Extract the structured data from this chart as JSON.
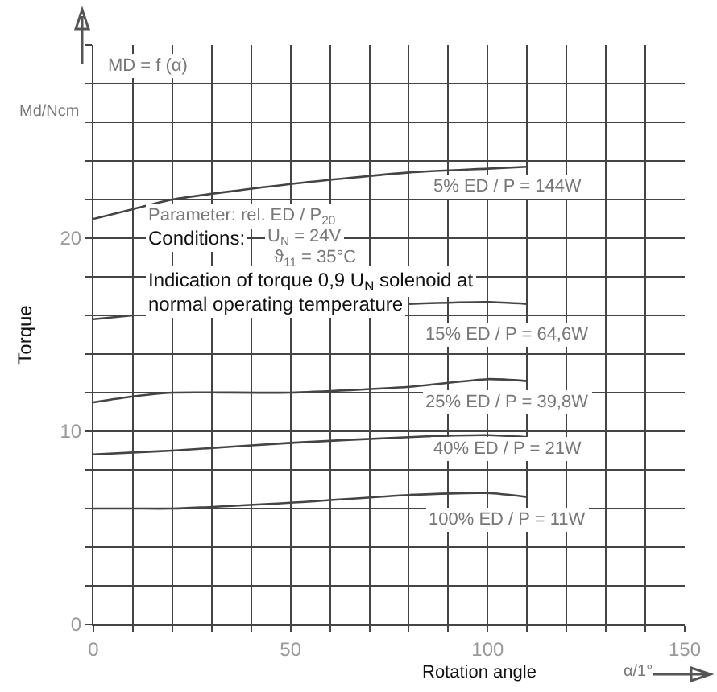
{
  "chart_data": {
    "type": "line",
    "title": "MD = f (α)",
    "xlabel": "Rotation angle",
    "ylabel": "Torque",
    "x": [
      0,
      10,
      20,
      50,
      80,
      100,
      110
    ],
    "series": [
      {
        "name": "5% ED / P = 144W",
        "color": "#444444",
        "values": [
          21.0,
          21.5,
          22.0,
          22.8,
          23.4,
          23.6,
          23.7
        ]
      },
      {
        "name": "15% ED / P = 64,6W",
        "color": "#444444",
        "values": [
          15.8,
          16.0,
          null,
          null,
          16.6,
          16.7,
          16.6
        ]
      },
      {
        "name": "25% ED / P = 39,8W",
        "color": "#444444",
        "values": [
          11.5,
          11.8,
          12.0,
          12.0,
          12.3,
          12.7,
          12.6
        ]
      },
      {
        "name": "40% ED / P = 21W",
        "color": "#444444",
        "values": [
          8.8,
          8.9,
          9.0,
          9.4,
          9.7,
          9.8,
          9.7
        ]
      },
      {
        "name": "100% ED / P = 11W",
        "color": "#444444",
        "values": [
          6.0,
          6.0,
          6.0,
          6.3,
          6.7,
          6.8,
          6.6
        ]
      }
    ],
    "xlim": [
      0,
      150
    ],
    "ylim": [
      0,
      30
    ],
    "xticks": [
      0,
      {
        "value": 10,
        "label": null
      },
      {
        "value": 20,
        "label": null
      },
      {
        "value": 30,
        "label": null
      },
      {
        "value": 40,
        "label": null
      },
      50,
      {
        "value": 60,
        "label": null
      },
      {
        "value": 70,
        "label": null
      },
      {
        "value": 80,
        "label": null
      },
      {
        "value": 90,
        "label": null
      },
      100,
      {
        "value": 110,
        "label": null
      },
      {
        "value": 120,
        "label": null
      },
      {
        "value": 130,
        "label": null
      },
      {
        "value": 140,
        "label": null
      },
      150
    ],
    "yticks": [
      0,
      {
        "value": 2,
        "label": null
      },
      {
        "value": 4,
        "label": null
      },
      {
        "value": 6,
        "label": null
      },
      {
        "value": 8,
        "label": null
      },
      10,
      {
        "value": 12,
        "label": null
      },
      {
        "value": 14,
        "label": null
      },
      {
        "value": 16,
        "label": null
      },
      {
        "value": 18,
        "label": null
      },
      20,
      {
        "value": 22,
        "label": null
      },
      {
        "value": 24,
        "label": null
      },
      {
        "value": 26,
        "label": null
      },
      {
        "value": 28,
        "label": null
      },
      {
        "value": 30,
        "label": null
      }
    ],
    "grid": true,
    "legend": false,
    "marker": "none",
    "line_style": "solid",
    "annotations": [
      "Parameter: rel. ED / P$_{20}$",
      "Conditions:",
      "U$_{N}$ = 24V",
      "ϑ$_{11}$ = 35°C",
      "Indication of torque 0,9 U$_{N}$ solenoid at",
      "normal operating temperature",
      "Md/Ncm",
      "α/1°"
    ]
  }
}
